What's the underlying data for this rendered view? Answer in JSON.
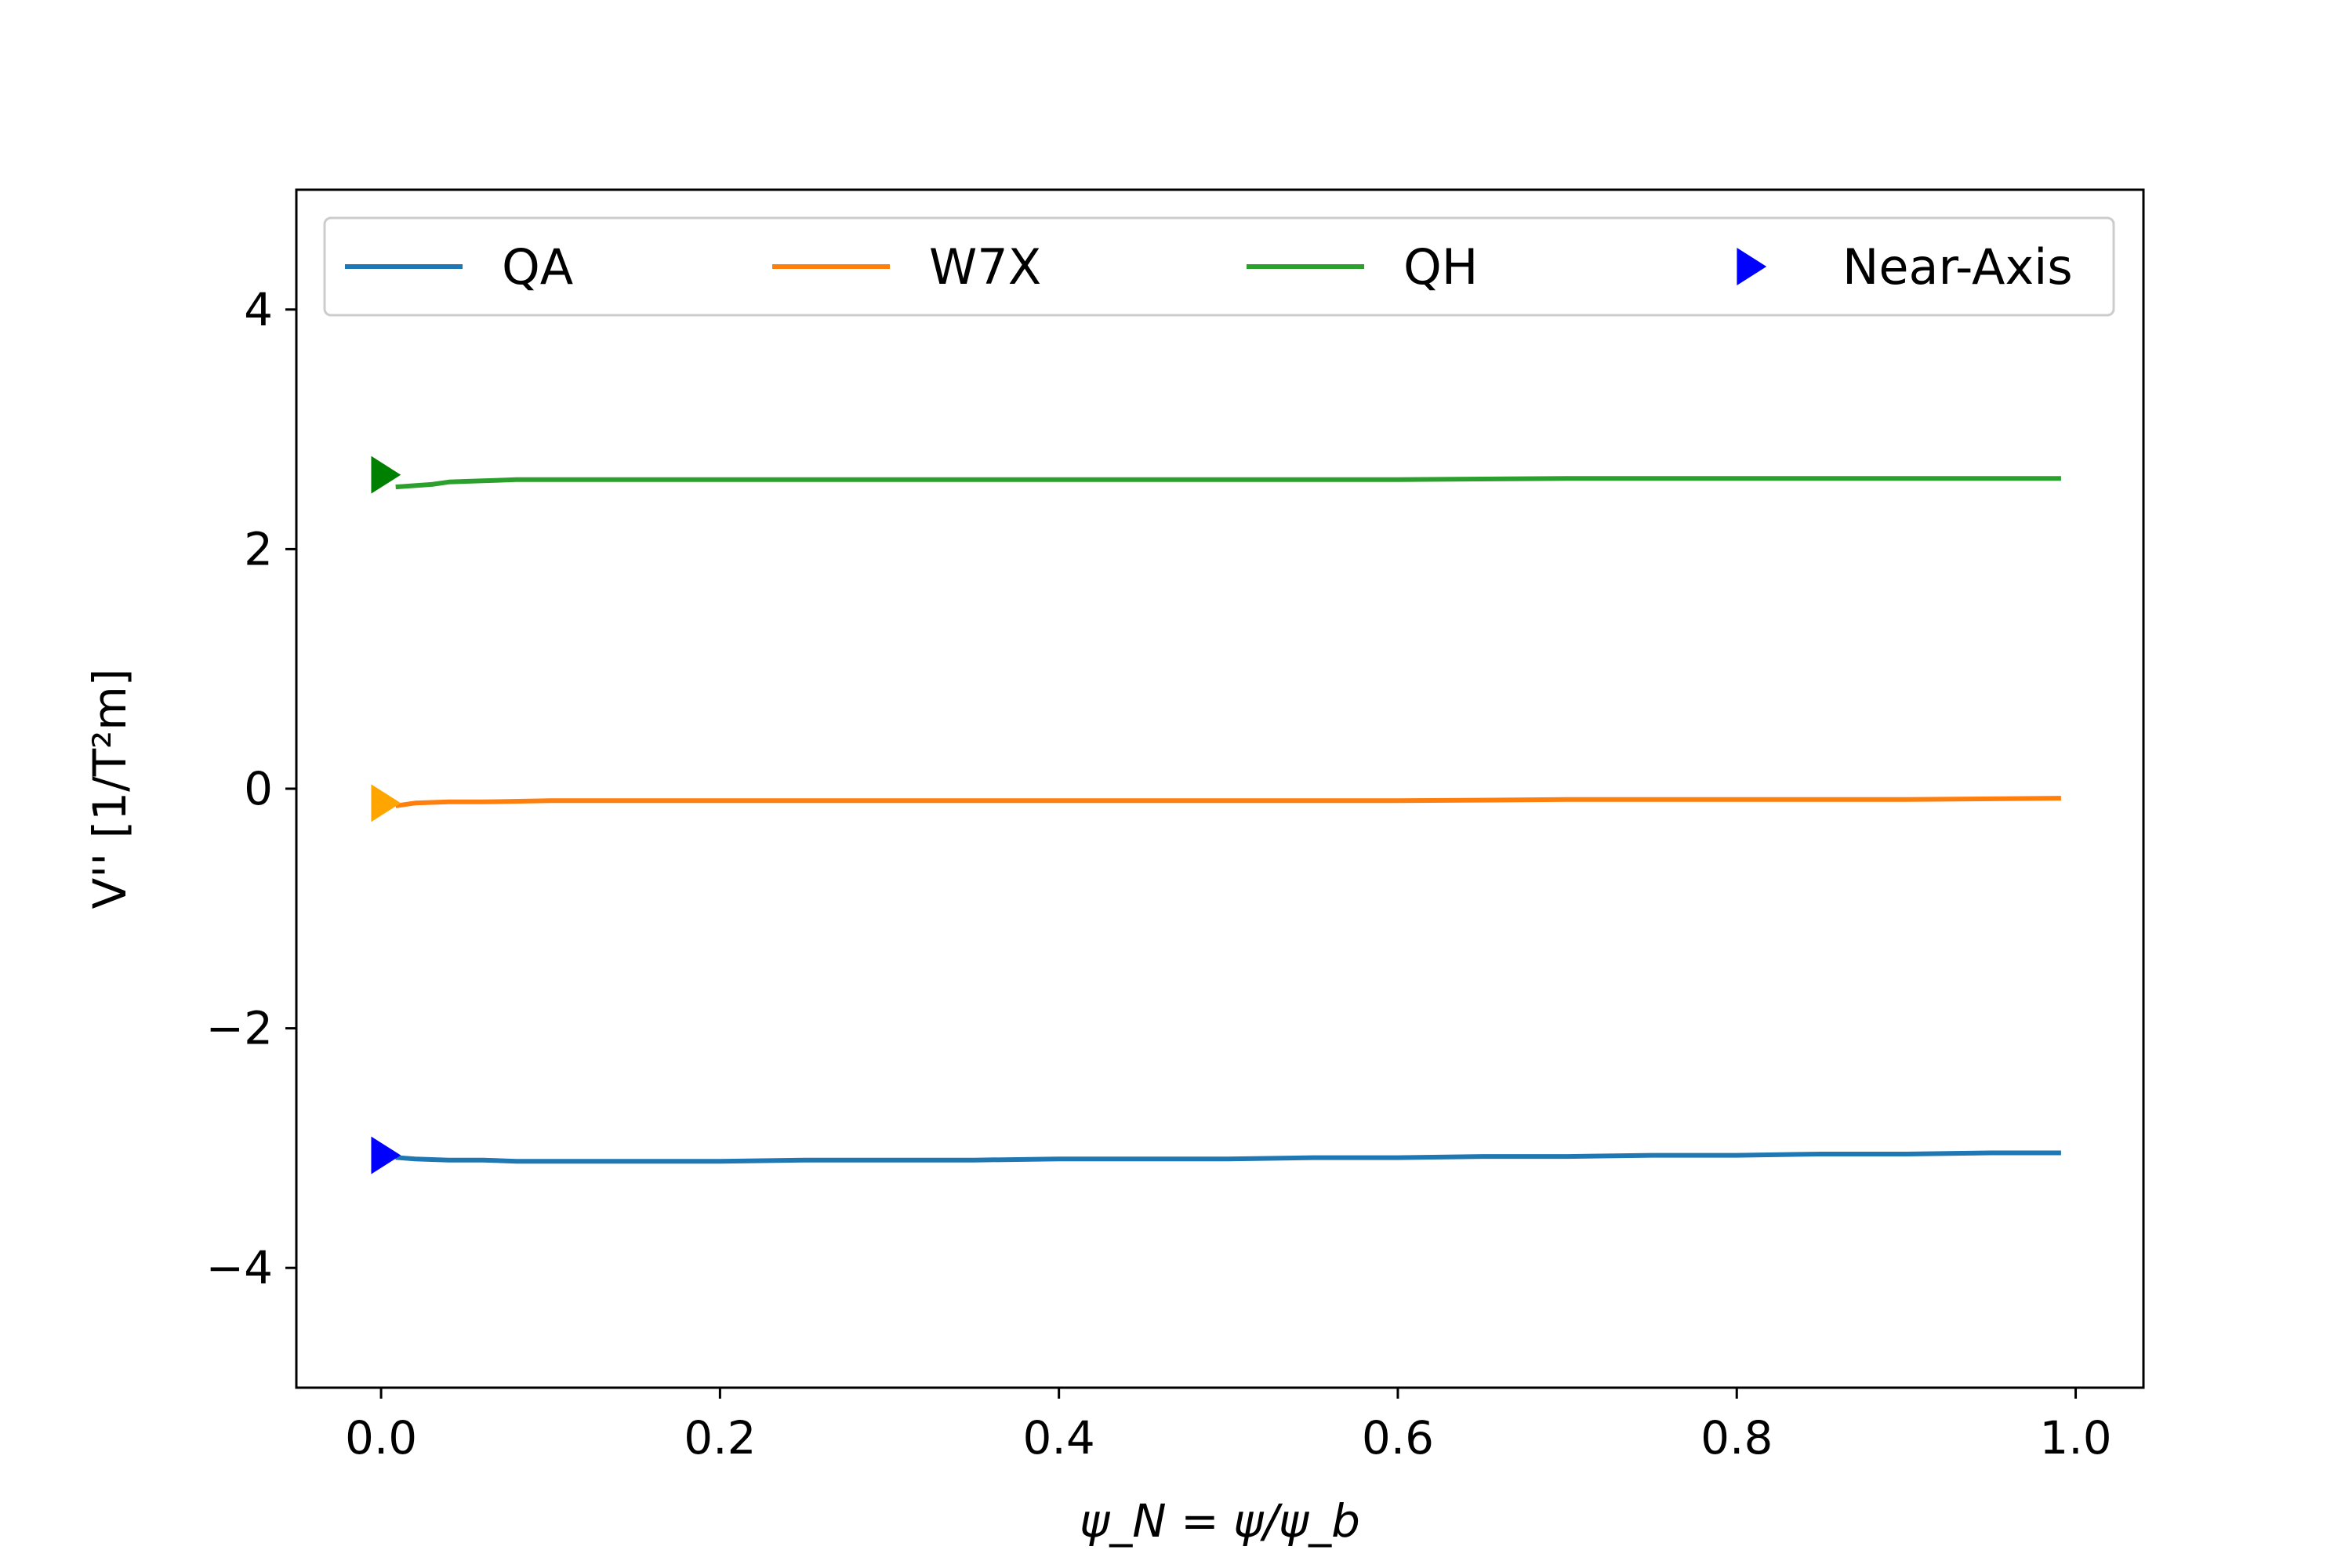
{
  "chart_data": {
    "type": "line",
    "title": "",
    "xlabel": "ψ_N = ψ/ψ_b",
    "ylabel": "V'' [1/T²m]",
    "xlim": [
      -0.05,
      1.04
    ],
    "ylim": [
      -5,
      5
    ],
    "xticks": [
      0.0,
      0.2,
      0.4,
      0.6,
      0.8,
      1.0
    ],
    "xtick_labels": [
      "0.0",
      "0.2",
      "0.4",
      "0.6",
      "0.8",
      "1.0"
    ],
    "yticks": [
      -4,
      -2,
      0,
      2,
      4
    ],
    "ytick_labels": [
      "−4",
      "−2",
      "0",
      "2",
      "4"
    ],
    "grid": false,
    "legend": {
      "placement": "top",
      "ncol": 4,
      "entries": [
        "QA",
        "W7X",
        "QH",
        "Near-Axis"
      ]
    },
    "series": [
      {
        "name": "QA",
        "color": "#1f77b4",
        "x": [
          0.01,
          0.02,
          0.04,
          0.06,
          0.08,
          0.1,
          0.15,
          0.2,
          0.25,
          0.3,
          0.35,
          0.4,
          0.45,
          0.5,
          0.55,
          0.6,
          0.65,
          0.7,
          0.75,
          0.8,
          0.85,
          0.9,
          0.95,
          0.99
        ],
        "y": [
          -3.08,
          -3.09,
          -3.1,
          -3.1,
          -3.11,
          -3.11,
          -3.11,
          -3.11,
          -3.1,
          -3.1,
          -3.1,
          -3.09,
          -3.09,
          -3.09,
          -3.08,
          -3.08,
          -3.07,
          -3.07,
          -3.06,
          -3.06,
          -3.05,
          -3.05,
          -3.04,
          -3.04
        ]
      },
      {
        "name": "W7X",
        "color": "#ff7f0e",
        "x": [
          0.01,
          0.02,
          0.04,
          0.06,
          0.1,
          0.2,
          0.3,
          0.4,
          0.5,
          0.6,
          0.7,
          0.8,
          0.9,
          0.99
        ],
        "y": [
          -0.14,
          -0.12,
          -0.11,
          -0.11,
          -0.1,
          -0.1,
          -0.1,
          -0.1,
          -0.1,
          -0.1,
          -0.09,
          -0.09,
          -0.09,
          -0.08
        ]
      },
      {
        "name": "QH",
        "color": "#2ca02c",
        "x": [
          0.01,
          0.02,
          0.03,
          0.04,
          0.06,
          0.08,
          0.1,
          0.15,
          0.2,
          0.3,
          0.4,
          0.5,
          0.6,
          0.7,
          0.8,
          0.9,
          0.99
        ],
        "y": [
          2.52,
          2.53,
          2.54,
          2.56,
          2.57,
          2.58,
          2.58,
          2.58,
          2.58,
          2.58,
          2.58,
          2.58,
          2.58,
          2.59,
          2.59,
          2.59,
          2.59
        ]
      }
    ],
    "markers": {
      "name": "Near-Axis",
      "shape": "triangle-right",
      "points": [
        {
          "x": 0.0,
          "y": -3.06,
          "color": "#0000ff"
        },
        {
          "x": 0.0,
          "y": -0.12,
          "color": "#ffa500"
        },
        {
          "x": 0.0,
          "y": 2.62,
          "color": "#008000"
        }
      ]
    }
  }
}
